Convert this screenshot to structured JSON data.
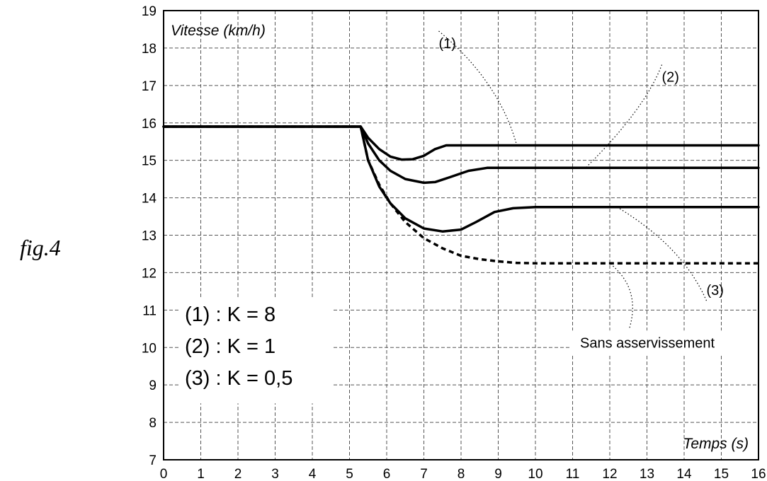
{
  "figure_label": "fig.4",
  "chart_data": {
    "type": "line",
    "title": "",
    "xlabel": "Temps (s)",
    "ylabel": "Vitesse (km/h)",
    "xlim": [
      0,
      16
    ],
    "ylim": [
      7,
      19
    ],
    "x_ticks": [
      "0",
      "1",
      "2",
      "3",
      "4",
      "5",
      "6",
      "7",
      "8",
      "9",
      "10",
      "11",
      "12",
      "13",
      "14",
      "15",
      "16"
    ],
    "y_ticks": [
      "7",
      "8",
      "9",
      "10",
      "11",
      "12",
      "13",
      "14",
      "15",
      "16",
      "17",
      "18",
      "19"
    ],
    "grid": true,
    "series": [
      {
        "name": "(1)",
        "style": "solid",
        "points": [
          [
            0,
            15.9
          ],
          [
            5.3,
            15.9
          ],
          [
            5.5,
            15.6
          ],
          [
            5.8,
            15.3
          ],
          [
            6.1,
            15.1
          ],
          [
            6.4,
            15.02
          ],
          [
            6.7,
            15.03
          ],
          [
            7.0,
            15.12
          ],
          [
            7.3,
            15.3
          ],
          [
            7.6,
            15.4
          ],
          [
            8.0,
            15.4
          ],
          [
            16,
            15.4
          ]
        ]
      },
      {
        "name": "(2)",
        "style": "solid",
        "points": [
          [
            0,
            15.9
          ],
          [
            5.3,
            15.9
          ],
          [
            5.5,
            15.45
          ],
          [
            5.8,
            15.0
          ],
          [
            6.1,
            14.72
          ],
          [
            6.5,
            14.5
          ],
          [
            7.0,
            14.4
          ],
          [
            7.3,
            14.42
          ],
          [
            7.7,
            14.55
          ],
          [
            8.2,
            14.72
          ],
          [
            8.7,
            14.8
          ],
          [
            9.2,
            14.8
          ],
          [
            16,
            14.8
          ]
        ]
      },
      {
        "name": "(3)",
        "style": "solid",
        "points": [
          [
            0,
            15.9
          ],
          [
            5.3,
            15.9
          ],
          [
            5.5,
            15.0
          ],
          [
            5.8,
            14.3
          ],
          [
            6.1,
            13.85
          ],
          [
            6.5,
            13.45
          ],
          [
            7.0,
            13.18
          ],
          [
            7.5,
            13.1
          ],
          [
            8.0,
            13.15
          ],
          [
            8.4,
            13.35
          ],
          [
            8.9,
            13.62
          ],
          [
            9.4,
            13.72
          ],
          [
            10.0,
            13.75
          ],
          [
            16,
            13.75
          ]
        ]
      },
      {
        "name": "Sans asservissement",
        "style": "dashed",
        "points": [
          [
            0,
            15.9
          ],
          [
            5.3,
            15.9
          ],
          [
            5.5,
            15.0
          ],
          [
            5.8,
            14.35
          ],
          [
            6.1,
            13.85
          ],
          [
            6.5,
            13.35
          ],
          [
            7.0,
            12.92
          ],
          [
            7.5,
            12.65
          ],
          [
            8.0,
            12.45
          ],
          [
            8.5,
            12.36
          ],
          [
            9.0,
            12.3
          ],
          [
            9.5,
            12.26
          ],
          [
            10.0,
            12.25
          ],
          [
            16,
            12.25
          ]
        ]
      }
    ],
    "annotations": [
      {
        "text": "(1)",
        "x": 7.4,
        "y": 18.0,
        "target": [
          9.5,
          15.4
        ]
      },
      {
        "text": "(2)",
        "x": 13.4,
        "y": 17.1,
        "target": [
          11.35,
          14.8
        ]
      },
      {
        "text": "(3)",
        "x": 14.6,
        "y": 11.4,
        "target": [
          12.2,
          13.75
        ]
      },
      {
        "text": "Sans asservissement",
        "x": 11.2,
        "y": 10.0,
        "target": [
          12.0,
          12.25
        ]
      }
    ],
    "legend_box": {
      "lines": [
        "(1) : K = 8",
        "(2) : K = 1",
        "(3) : K = 0,5"
      ],
      "placement": "bottom-left"
    }
  }
}
